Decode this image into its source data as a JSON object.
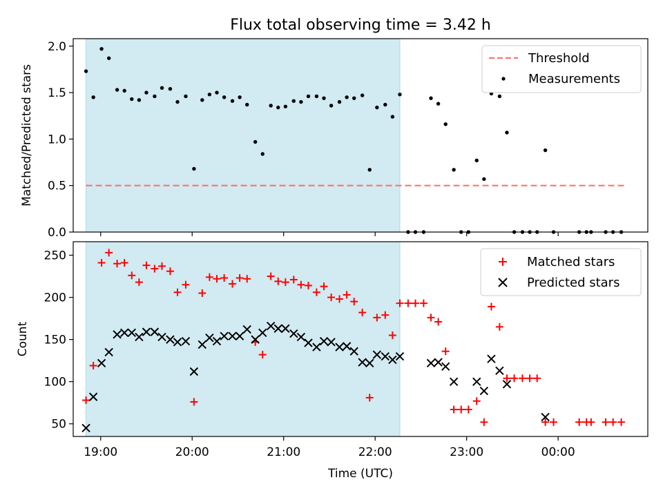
{
  "figure": {
    "title": "Flux total observing time = 3.42 h",
    "xlabel": "Time (UTC)"
  },
  "chart_data": [
    {
      "type": "scatter",
      "panel": "top",
      "ylabel": "Matched/Predicted stars",
      "xlim": [
        18.7,
        24.98
      ],
      "ylim": [
        0,
        2.08
      ],
      "yticks": [
        {
          "value": 0.0,
          "label": "0.0"
        },
        {
          "value": 0.5,
          "label": "0.5"
        },
        {
          "value": 1.0,
          "label": "1.0"
        },
        {
          "value": 1.5,
          "label": "1.5"
        },
        {
          "value": 2.0,
          "label": "2.0"
        }
      ],
      "shaded_span": {
        "x_start": 18.84,
        "x_end": 22.27,
        "color": "#add8e6"
      },
      "legend": {
        "placement": "upper right",
        "entries": [
          "Threshold",
          "Measurements"
        ]
      },
      "threshold": {
        "name": "Threshold",
        "y": 0.5,
        "x_start": 18.84,
        "x_end": 24.73,
        "color": "#ff7070",
        "style": "dashed"
      },
      "series": [
        {
          "name": "Measurements",
          "color": "#000000",
          "marker": "dot",
          "points": [
            [
              18.84,
              1.73
            ],
            [
              18.92,
              1.45
            ],
            [
              19.01,
              1.97
            ],
            [
              19.09,
              1.87
            ],
            [
              19.18,
              1.53
            ],
            [
              19.26,
              1.52
            ],
            [
              19.34,
              1.43
            ],
            [
              19.42,
              1.42
            ],
            [
              19.5,
              1.5
            ],
            [
              19.59,
              1.46
            ],
            [
              19.67,
              1.55
            ],
            [
              19.76,
              1.54
            ],
            [
              19.84,
              1.4
            ],
            [
              19.93,
              1.46
            ],
            [
              20.02,
              0.68
            ],
            [
              20.11,
              1.42
            ],
            [
              20.19,
              1.48
            ],
            [
              20.27,
              1.5
            ],
            [
              20.35,
              1.45
            ],
            [
              20.44,
              1.41
            ],
            [
              20.52,
              1.45
            ],
            [
              20.6,
              1.37
            ],
            [
              20.69,
              0.97
            ],
            [
              20.77,
              0.84
            ],
            [
              20.86,
              1.36
            ],
            [
              20.94,
              1.34
            ],
            [
              21.02,
              1.35
            ],
            [
              21.11,
              1.41
            ],
            [
              21.19,
              1.4
            ],
            [
              21.27,
              1.46
            ],
            [
              21.36,
              1.46
            ],
            [
              21.44,
              1.44
            ],
            [
              21.52,
              1.36
            ],
            [
              21.61,
              1.4
            ],
            [
              21.69,
              1.45
            ],
            [
              21.77,
              1.44
            ],
            [
              21.86,
              1.47
            ],
            [
              21.94,
              0.67
            ],
            [
              22.02,
              1.34
            ],
            [
              22.11,
              1.37
            ],
            [
              22.19,
              1.24
            ],
            [
              22.27,
              1.48
            ],
            [
              22.36,
              0.0
            ],
            [
              22.44,
              0.0
            ],
            [
              22.53,
              0.0
            ],
            [
              22.61,
              1.44
            ],
            [
              22.69,
              1.38
            ],
            [
              22.77,
              1.16
            ],
            [
              22.86,
              0.67
            ],
            [
              22.94,
              0.0
            ],
            [
              23.02,
              0.0
            ],
            [
              23.11,
              0.77
            ],
            [
              23.19,
              0.57
            ],
            [
              23.27,
              1.49
            ],
            [
              23.36,
              1.46
            ],
            [
              23.44,
              1.07
            ],
            [
              23.52,
              0.0
            ],
            [
              23.61,
              0.0
            ],
            [
              23.69,
              0.0
            ],
            [
              23.77,
              0.0
            ],
            [
              23.86,
              0.88
            ],
            [
              23.95,
              0.0
            ],
            [
              24.23,
              0.0
            ],
            [
              24.31,
              0.0
            ],
            [
              24.36,
              0.0
            ],
            [
              24.52,
              0.0
            ],
            [
              24.6,
              0.0
            ],
            [
              24.69,
              0.0
            ]
          ]
        }
      ]
    },
    {
      "type": "scatter",
      "panel": "bottom",
      "ylabel": "Count",
      "xlim": [
        18.7,
        24.98
      ],
      "ylim": [
        35,
        266
      ],
      "yticks": [
        {
          "value": 50,
          "label": "50"
        },
        {
          "value": 100,
          "label": "100"
        },
        {
          "value": 150,
          "label": "150"
        },
        {
          "value": 200,
          "label": "200"
        },
        {
          "value": 250,
          "label": "250"
        }
      ],
      "xticks": [
        {
          "value": 19,
          "label": "19:00"
        },
        {
          "value": 20,
          "label": "20:00"
        },
        {
          "value": 21,
          "label": "21:00"
        },
        {
          "value": 22,
          "label": "22:00"
        },
        {
          "value": 23,
          "label": "23:00"
        },
        {
          "value": 24,
          "label": "00:00"
        }
      ],
      "shaded_span": {
        "x_start": 18.84,
        "x_end": 22.27,
        "color": "#add8e6"
      },
      "legend": {
        "placement": "upper right",
        "entries": [
          "Matched stars",
          "Predicted stars"
        ]
      },
      "series": [
        {
          "name": "Matched stars",
          "color": "#ff0000",
          "marker": "plus",
          "points": [
            [
              18.84,
              78
            ],
            [
              18.92,
              119
            ],
            [
              19.01,
              241
            ],
            [
              19.09,
              253
            ],
            [
              19.18,
              240
            ],
            [
              19.26,
              241
            ],
            [
              19.34,
              226
            ],
            [
              19.42,
              218
            ],
            [
              19.5,
              238
            ],
            [
              19.59,
              234
            ],
            [
              19.67,
              237
            ],
            [
              19.76,
              231
            ],
            [
              19.84,
              206
            ],
            [
              19.93,
              215
            ],
            [
              20.02,
              76
            ],
            [
              20.11,
              205
            ],
            [
              20.19,
              224
            ],
            [
              20.27,
              222
            ],
            [
              20.35,
              223
            ],
            [
              20.44,
              216
            ],
            [
              20.52,
              223
            ],
            [
              20.6,
              222
            ],
            [
              20.69,
              147
            ],
            [
              20.77,
              132
            ],
            [
              20.86,
              225
            ],
            [
              20.94,
              219
            ],
            [
              21.02,
              218
            ],
            [
              21.11,
              221
            ],
            [
              21.19,
              215
            ],
            [
              21.27,
              214
            ],
            [
              21.36,
              206
            ],
            [
              21.44,
              213
            ],
            [
              21.52,
              200
            ],
            [
              21.61,
              198
            ],
            [
              21.69,
              203
            ],
            [
              21.77,
              195
            ],
            [
              21.86,
              182
            ],
            [
              21.94,
              81
            ],
            [
              22.02,
              176
            ],
            [
              22.11,
              179
            ],
            [
              22.19,
              155
            ],
            [
              22.27,
              193
            ],
            [
              22.36,
              193
            ],
            [
              22.44,
              193
            ],
            [
              22.53,
              193
            ],
            [
              22.61,
              176
            ],
            [
              22.69,
              171
            ],
            [
              22.77,
              136
            ],
            [
              22.86,
              67
            ],
            [
              22.94,
              67
            ],
            [
              23.02,
              67
            ],
            [
              23.11,
              77
            ],
            [
              23.19,
              52
            ],
            [
              23.27,
              189
            ],
            [
              23.36,
              165
            ],
            [
              23.44,
              104
            ],
            [
              23.52,
              104
            ],
            [
              23.61,
              104
            ],
            [
              23.69,
              104
            ],
            [
              23.77,
              104
            ],
            [
              23.86,
              52
            ],
            [
              23.95,
              52
            ],
            [
              24.23,
              52
            ],
            [
              24.31,
              52
            ],
            [
              24.36,
              52
            ],
            [
              24.52,
              52
            ],
            [
              24.6,
              52
            ],
            [
              24.69,
              52
            ]
          ]
        },
        {
          "name": "Predicted stars",
          "color": "#000000",
          "marker": "x",
          "points": [
            [
              18.84,
              45
            ],
            [
              18.92,
              82
            ],
            [
              19.01,
              122
            ],
            [
              19.09,
              135
            ],
            [
              19.18,
              156
            ],
            [
              19.26,
              158
            ],
            [
              19.34,
              158
            ],
            [
              19.42,
              153
            ],
            [
              19.5,
              159
            ],
            [
              19.59,
              159
            ],
            [
              19.67,
              153
            ],
            [
              19.76,
              150
            ],
            [
              19.84,
              147
            ],
            [
              19.93,
              148
            ],
            [
              20.02,
              112
            ],
            [
              20.11,
              144
            ],
            [
              20.19,
              152
            ],
            [
              20.27,
              148
            ],
            [
              20.35,
              154
            ],
            [
              20.44,
              154
            ],
            [
              20.52,
              154
            ],
            [
              20.6,
              162
            ],
            [
              20.69,
              150
            ],
            [
              20.77,
              158
            ],
            [
              20.86,
              166
            ],
            [
              20.94,
              163
            ],
            [
              21.02,
              163
            ],
            [
              21.11,
              157
            ],
            [
              21.19,
              153
            ],
            [
              21.27,
              146
            ],
            [
              21.36,
              141
            ],
            [
              21.44,
              148
            ],
            [
              21.52,
              147
            ],
            [
              21.61,
              141
            ],
            [
              21.69,
              142
            ],
            [
              21.77,
              136
            ],
            [
              21.86,
              123
            ],
            [
              21.94,
              122
            ],
            [
              22.02,
              132
            ],
            [
              22.11,
              130
            ],
            [
              22.19,
              126
            ],
            [
              22.27,
              130
            ],
            [
              22.61,
              122
            ],
            [
              22.69,
              123
            ],
            [
              22.77,
              118
            ],
            [
              22.86,
              100
            ],
            [
              23.11,
              100
            ],
            [
              23.19,
              89
            ],
            [
              23.27,
              127
            ],
            [
              23.36,
              113
            ],
            [
              23.44,
              97
            ],
            [
              23.86,
              58
            ]
          ]
        }
      ]
    }
  ]
}
